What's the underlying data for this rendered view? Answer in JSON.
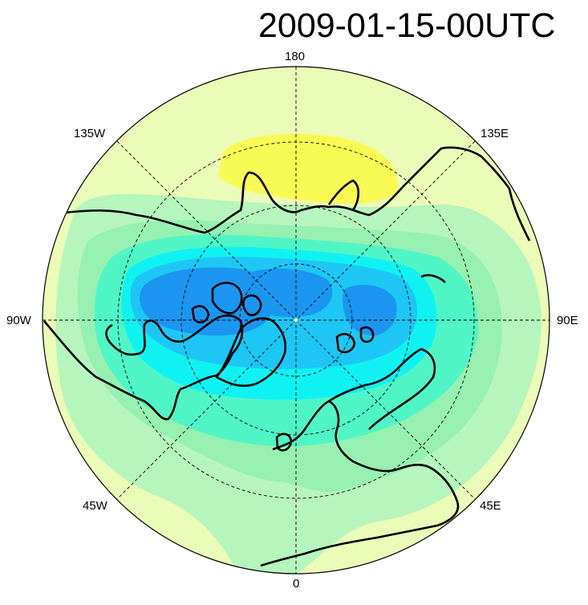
{
  "title": "2009-01-15-00UTC",
  "longitude_labels": {
    "top": "180",
    "upper_left": "135W",
    "upper_right": "135E",
    "left": "90W",
    "right": "90E",
    "lower_left": "45W",
    "lower_right": "45E",
    "bottom": "0"
  },
  "colors": {
    "ocean_background": "#ebfbb8",
    "pale_yellow": "#f4fdb6",
    "yellow": "#fafa54",
    "light_green": "#b6f5bb",
    "green": "#96f0b0",
    "aquamarine": "#50f5c6",
    "cyan": "#10f2f2",
    "sky_blue": "#1ec6f5",
    "blue": "#1a96f0",
    "coastline": "#000000"
  }
}
